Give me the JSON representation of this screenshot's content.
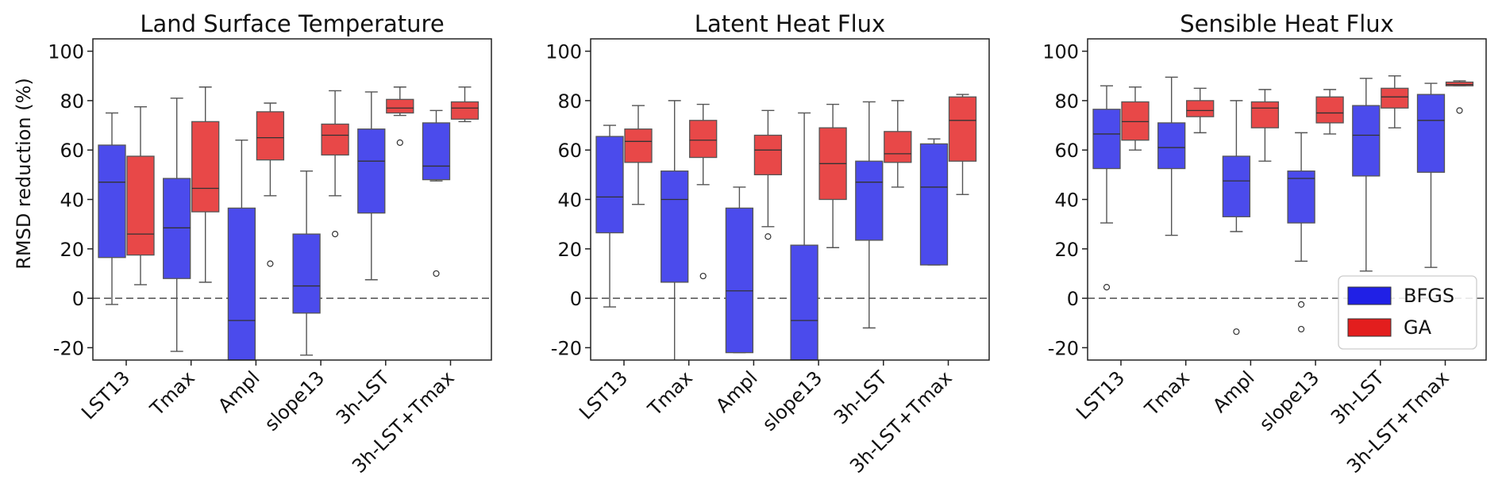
{
  "ylabel": "RMSD reduction (%)",
  "legend": {
    "placement": "lower-right of third panel",
    "entries": [
      {
        "name": "BFGS",
        "color": "#2020e6"
      },
      {
        "name": "GA",
        "color": "#e31e1e"
      }
    ]
  },
  "colors": {
    "BFGS": "#4b4bec",
    "GA": "#e84848",
    "whisker": "#555555",
    "zero_line": "#666666"
  },
  "chart_data": [
    {
      "type": "boxplot",
      "title": "Land Surface Temperature",
      "ylabel": "RMSD reduction (%)",
      "ylim": [
        -25,
        105
      ],
      "yticks": [
        -20,
        0,
        20,
        40,
        60,
        80,
        100
      ],
      "categories": [
        "LST13",
        "Tmax",
        "Ampl",
        "slope13",
        "3h-LST",
        "3h-LST+Tmax"
      ],
      "series": [
        {
          "name": "BFGS",
          "boxes": [
            {
              "whislo": -2.5,
              "q1": 16.5,
              "med": 47,
              "q3": 62,
              "whishi": 75,
              "fliers": []
            },
            {
              "whislo": -21.5,
              "q1": 8,
              "med": 28.5,
              "q3": 48.5,
              "whishi": 81,
              "fliers": []
            },
            {
              "whislo": -25,
              "q1": -25,
              "med": -9,
              "q3": 36.5,
              "whishi": 64,
              "fliers": []
            },
            {
              "whislo": -23,
              "q1": -6,
              "med": 5,
              "q3": 26,
              "whishi": 51.5,
              "fliers": []
            },
            {
              "whislo": 7.5,
              "q1": 34.5,
              "med": 55.5,
              "q3": 68.5,
              "whishi": 83.5,
              "fliers": []
            },
            {
              "whislo": 47.5,
              "q1": 48,
              "med": 53.5,
              "q3": 71,
              "whishi": 76,
              "fliers": [
                10
              ]
            }
          ]
        },
        {
          "name": "GA",
          "boxes": [
            {
              "whislo": 5.5,
              "q1": 17.5,
              "med": 26,
              "q3": 57.5,
              "whishi": 77.5,
              "fliers": []
            },
            {
              "whislo": 6.5,
              "q1": 35,
              "med": 44.5,
              "q3": 71.5,
              "whishi": 85.5,
              "fliers": []
            },
            {
              "whislo": 41.5,
              "q1": 56,
              "med": 65,
              "q3": 75.5,
              "whishi": 79,
              "fliers": [
                14
              ]
            },
            {
              "whislo": 41.5,
              "q1": 58,
              "med": 66,
              "q3": 70.5,
              "whishi": 84,
              "fliers": [
                26
              ]
            },
            {
              "whislo": 74,
              "q1": 75,
              "med": 77,
              "q3": 80.5,
              "whishi": 85.5,
              "fliers": [
                63
              ]
            },
            {
              "whislo": 71.5,
              "q1": 72.5,
              "med": 77,
              "q3": 79.5,
              "whishi": 85.5,
              "fliers": []
            }
          ]
        }
      ]
    },
    {
      "type": "boxplot",
      "title": "Latent Heat Flux",
      "ylim": [
        -25,
        105
      ],
      "yticks": [
        -20,
        0,
        20,
        40,
        60,
        80,
        100
      ],
      "categories": [
        "LST13",
        "Tmax",
        "Ampl",
        "slope13",
        "3h-LST",
        "3h-LST+Tmax"
      ],
      "series": [
        {
          "name": "BFGS",
          "boxes": [
            {
              "whislo": -3.5,
              "q1": 26.5,
              "med": 41,
              "q3": 65.5,
              "whishi": 70,
              "fliers": []
            },
            {
              "whislo": -25,
              "q1": 6.5,
              "med": 40,
              "q3": 51.5,
              "whishi": 80,
              "fliers": []
            },
            {
              "whislo": -22,
              "q1": -22,
              "med": 3,
              "q3": 36.5,
              "whishi": 45,
              "fliers": []
            },
            {
              "whislo": -25,
              "q1": -25,
              "med": -9,
              "q3": 21.5,
              "whishi": 75,
              "fliers": []
            },
            {
              "whislo": -12,
              "q1": 23.5,
              "med": 47,
              "q3": 55.5,
              "whishi": 79.5,
              "fliers": []
            },
            {
              "whislo": 13.5,
              "q1": 13.5,
              "med": 45,
              "q3": 62.5,
              "whishi": 64.5,
              "fliers": []
            }
          ]
        },
        {
          "name": "GA",
          "boxes": [
            {
              "whislo": 38,
              "q1": 55,
              "med": 63.5,
              "q3": 68.5,
              "whishi": 78,
              "fliers": []
            },
            {
              "whislo": 46,
              "q1": 57,
              "med": 64,
              "q3": 72,
              "whishi": 78.5,
              "fliers": [
                9
              ]
            },
            {
              "whislo": 29,
              "q1": 50,
              "med": 60,
              "q3": 66,
              "whishi": 76,
              "fliers": [
                25
              ]
            },
            {
              "whislo": 20.5,
              "q1": 40,
              "med": 54.5,
              "q3": 69,
              "whishi": 78.5,
              "fliers": []
            },
            {
              "whislo": 45,
              "q1": 55,
              "med": 58.5,
              "q3": 67.5,
              "whishi": 80,
              "fliers": []
            },
            {
              "whislo": 42,
              "q1": 55.5,
              "med": 72,
              "q3": 81.5,
              "whishi": 82.5,
              "fliers": []
            }
          ]
        }
      ]
    },
    {
      "type": "boxplot",
      "title": "Sensible Heat Flux",
      "ylim": [
        -25,
        105
      ],
      "yticks": [
        -20,
        0,
        20,
        40,
        60,
        80,
        100
      ],
      "categories": [
        "LST13",
        "Tmax",
        "Ampl",
        "slope13",
        "3h-LST",
        "3h-LST+Tmax"
      ],
      "series": [
        {
          "name": "BFGS",
          "boxes": [
            {
              "whislo": 30.5,
              "q1": 52.5,
              "med": 66.5,
              "q3": 76.5,
              "whishi": 86,
              "fliers": [
                4.5
              ]
            },
            {
              "whislo": 25.5,
              "q1": 52.5,
              "med": 61,
              "q3": 71,
              "whishi": 89.5,
              "fliers": []
            },
            {
              "whislo": 27,
              "q1": 33,
              "med": 47.5,
              "q3": 57.5,
              "whishi": 80,
              "fliers": [
                -13.5
              ]
            },
            {
              "whislo": 15,
              "q1": 30.5,
              "med": 48.5,
              "q3": 51.5,
              "whishi": 67,
              "fliers": [
                -2.5,
                -12.5
              ]
            },
            {
              "whislo": 11,
              "q1": 49.5,
              "med": 66,
              "q3": 78,
              "whishi": 89,
              "fliers": []
            },
            {
              "whislo": 12.5,
              "q1": 51,
              "med": 72,
              "q3": 82.5,
              "whishi": 87,
              "fliers": []
            }
          ]
        },
        {
          "name": "GA",
          "boxes": [
            {
              "whislo": 60,
              "q1": 64,
              "med": 71.5,
              "q3": 79.5,
              "whishi": 85.5,
              "fliers": []
            },
            {
              "whislo": 67,
              "q1": 73.5,
              "med": 76,
              "q3": 80,
              "whishi": 85,
              "fliers": []
            },
            {
              "whislo": 55.5,
              "q1": 69,
              "med": 77,
              "q3": 79.5,
              "whishi": 84.5,
              "fliers": []
            },
            {
              "whislo": 66.5,
              "q1": 71,
              "med": 75,
              "q3": 81.5,
              "whishi": 84.5,
              "fliers": []
            },
            {
              "whislo": 69,
              "q1": 77,
              "med": 81.5,
              "q3": 85,
              "whishi": 90,
              "fliers": []
            },
            {
              "whislo": 86,
              "q1": 86,
              "med": 86.5,
              "q3": 87.5,
              "whishi": 88,
              "fliers": [
                76
              ]
            }
          ]
        }
      ]
    }
  ]
}
